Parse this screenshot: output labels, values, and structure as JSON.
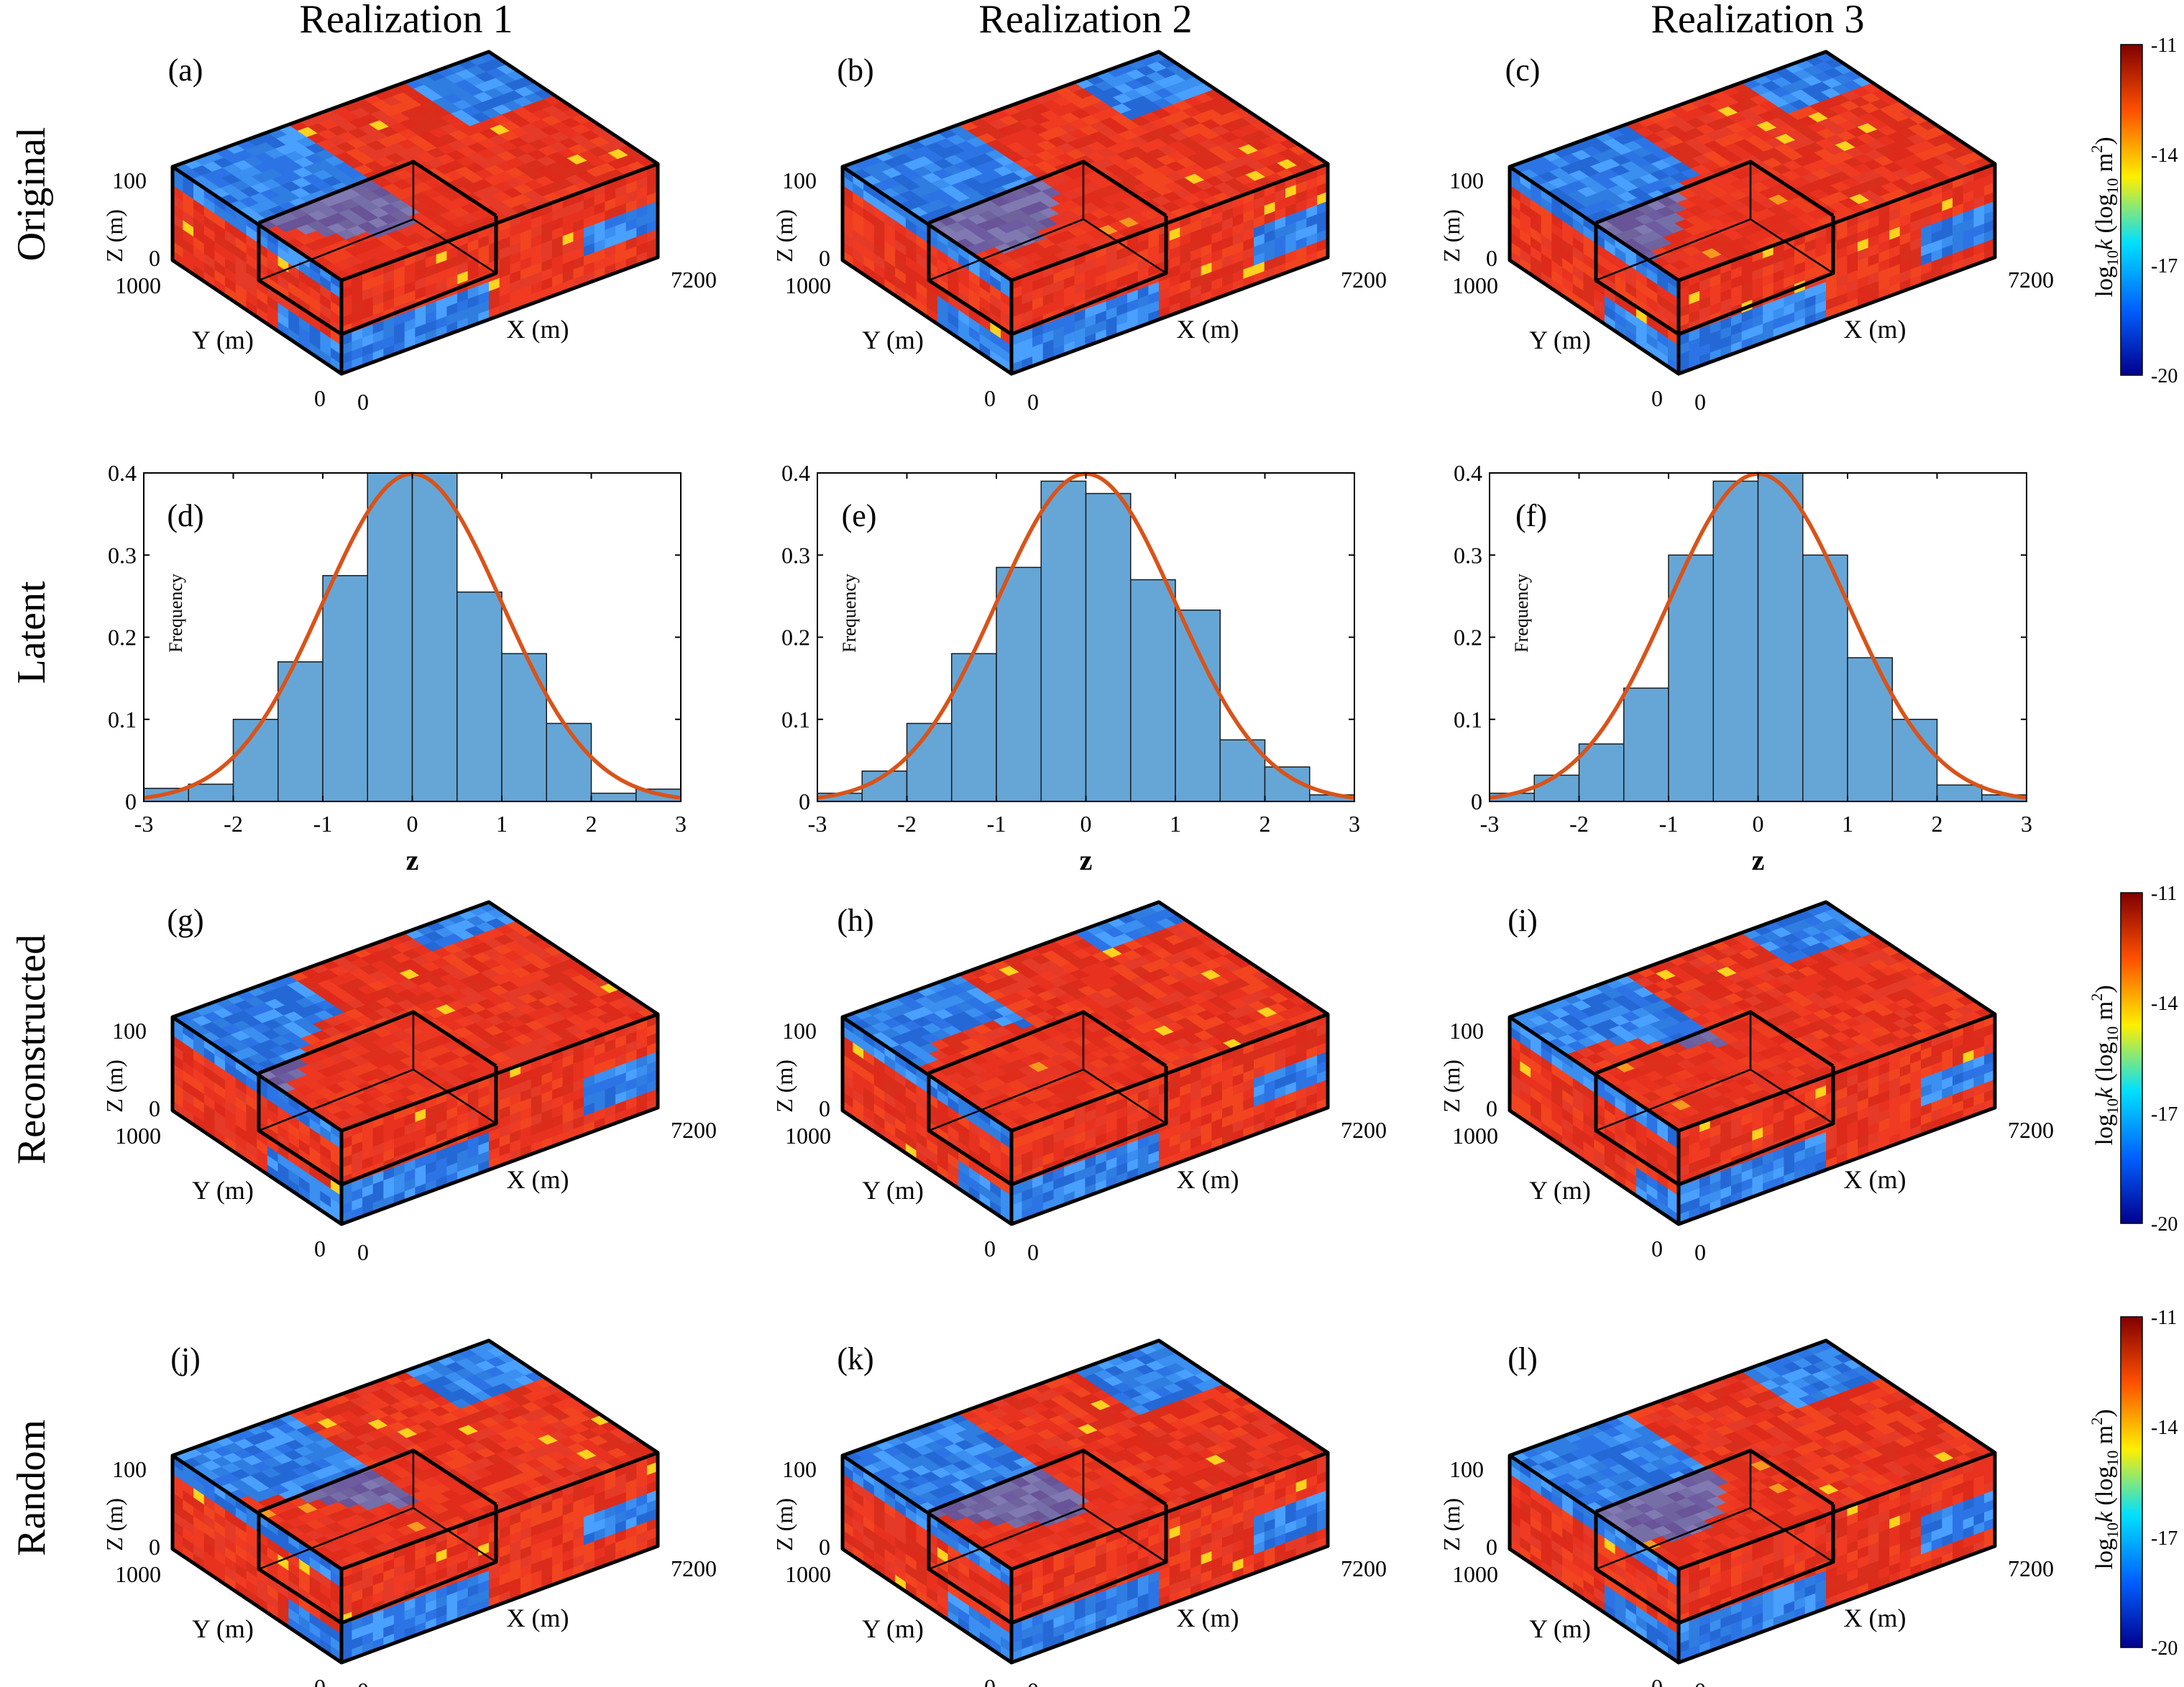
{
  "column_titles": [
    "Realization 1",
    "Realization 2",
    "Realization 3"
  ],
  "row_titles": [
    "Original",
    "Latent",
    "Reconstructed",
    "Random"
  ],
  "block_axes": {
    "z_label": "Z (m)",
    "y_label": "Y (m)",
    "x_label": "X (m)",
    "z_ticks": [
      "100",
      "0"
    ],
    "y_ticks": [
      "1000",
      "0"
    ],
    "x_ticks": [
      "0",
      "7200"
    ]
  },
  "colorbar": {
    "label": "log10k (log10 m2)",
    "ticks": [
      "-11",
      "-14",
      "-17",
      "-20"
    ],
    "range": [
      -20,
      -11
    ],
    "colors": [
      "#00008f",
      "#0060ff",
      "#00e0ff",
      "#ffef00",
      "#ff5000",
      "#800000"
    ]
  },
  "block_panels": [
    {
      "label": "(a)"
    },
    {
      "label": "(b)"
    },
    {
      "label": "(c)"
    },
    {
      "label": "(g)"
    },
    {
      "label": "(h)"
    },
    {
      "label": "(i)"
    },
    {
      "label": "(j)"
    },
    {
      "label": "(k)"
    },
    {
      "label": "(l)"
    }
  ],
  "chart_data": [
    {
      "type": "bar",
      "label": "(d)",
      "bin_edges": [
        -3,
        -2.5,
        -2,
        -1.5,
        -1,
        -0.5,
        0,
        0.5,
        1,
        1.5,
        2,
        2.5,
        3
      ],
      "values": [
        0.016,
        0.021,
        0.1,
        0.17,
        0.275,
        0.4,
        0.4,
        0.255,
        0.18,
        0.095,
        0.01,
        0.015
      ],
      "curve": "standard normal pdf",
      "xlabel": "z",
      "ylabel": "Frequency",
      "xlim": [
        -3,
        3
      ],
      "ylim": [
        0,
        0.4
      ],
      "xticks": [
        -3,
        -2,
        -1,
        0,
        1,
        2,
        3
      ],
      "yticks": [
        0,
        0.1,
        0.2,
        0.3,
        0.4
      ],
      "colors": {
        "bar": "#66a6d6",
        "curve": "#d95319"
      }
    },
    {
      "type": "bar",
      "label": "(e)",
      "bin_edges": [
        -3,
        -2.5,
        -2,
        -1.5,
        -1,
        -0.5,
        0,
        0.5,
        1,
        1.5,
        2,
        2.5,
        3
      ],
      "values": [
        0.01,
        0.037,
        0.095,
        0.18,
        0.285,
        0.39,
        0.375,
        0.27,
        0.233,
        0.075,
        0.042,
        0.008
      ],
      "curve": "standard normal pdf",
      "xlabel": "z",
      "ylabel": "Frequency",
      "xlim": [
        -3,
        3
      ],
      "ylim": [
        0,
        0.4
      ],
      "xticks": [
        -3,
        -2,
        -1,
        0,
        1,
        2,
        3
      ],
      "yticks": [
        0,
        0.1,
        0.2,
        0.3,
        0.4
      ],
      "colors": {
        "bar": "#66a6d6",
        "curve": "#d95319"
      }
    },
    {
      "type": "bar",
      "label": "(f)",
      "bin_edges": [
        -3,
        -2.5,
        -2,
        -1.5,
        -1,
        -0.5,
        0,
        0.5,
        1,
        1.5,
        2,
        2.5,
        3
      ],
      "values": [
        0.01,
        0.032,
        0.07,
        0.138,
        0.3,
        0.39,
        0.4,
        0.3,
        0.175,
        0.1,
        0.02,
        0.008
      ],
      "curve": "standard normal pdf",
      "xlabel": "z",
      "ylabel": "Frequency",
      "xlim": [
        -3,
        3
      ],
      "ylim": [
        0,
        0.4
      ],
      "xticks": [
        -3,
        -2,
        -1,
        0,
        1,
        2,
        3
      ],
      "yticks": [
        0,
        0.1,
        0.2,
        0.3,
        0.4
      ],
      "colors": {
        "bar": "#66a6d6",
        "curve": "#d95319"
      }
    }
  ]
}
